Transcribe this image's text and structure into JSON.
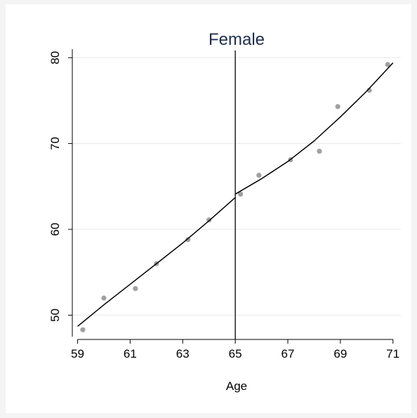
{
  "chart_data": {
    "type": "scatter",
    "title": "Female",
    "xlabel": "Age",
    "ylabel": "",
    "xlim": [
      58.8,
      71.3
    ],
    "ylim": [
      47.5,
      81
    ],
    "x_ticks": [
      59,
      61,
      63,
      65,
      67,
      69,
      71
    ],
    "y_ticks": [
      50,
      60,
      70,
      80
    ],
    "grid": "horizontal",
    "legend": "none",
    "cutoff_x": 65,
    "series": [
      {
        "kind": "scatter",
        "color": "#a0a0a0",
        "points": [
          {
            "x": 59.2,
            "y": 48.3
          },
          {
            "x": 60.0,
            "y": 52.0
          },
          {
            "x": 61.2,
            "y": 53.1
          },
          {
            "x": 62.0,
            "y": 56.0
          },
          {
            "x": 63.2,
            "y": 58.8
          },
          {
            "x": 64.0,
            "y": 61.1
          },
          {
            "x": 65.2,
            "y": 64.1
          },
          {
            "x": 65.9,
            "y": 66.3
          },
          {
            "x": 67.1,
            "y": 68.1
          },
          {
            "x": 68.2,
            "y": 69.1
          },
          {
            "x": 68.9,
            "y": 74.3
          },
          {
            "x": 70.1,
            "y": 76.2
          },
          {
            "x": 70.8,
            "y": 79.2
          }
        ]
      },
      {
        "kind": "fit-left",
        "color": "#000000",
        "points": [
          {
            "x": 59.0,
            "y": 48.7
          },
          {
            "x": 60.0,
            "y": 51.2
          },
          {
            "x": 61.0,
            "y": 53.6
          },
          {
            "x": 62.0,
            "y": 56.0
          },
          {
            "x": 63.0,
            "y": 58.4
          },
          {
            "x": 64.0,
            "y": 61.0
          },
          {
            "x": 65.0,
            "y": 63.7
          }
        ]
      },
      {
        "kind": "fit-right",
        "color": "#000000",
        "points": [
          {
            "x": 65.0,
            "y": 64.1
          },
          {
            "x": 66.0,
            "y": 65.9
          },
          {
            "x": 67.0,
            "y": 67.9
          },
          {
            "x": 68.0,
            "y": 70.3
          },
          {
            "x": 69.0,
            "y": 73.1
          },
          {
            "x": 70.0,
            "y": 76.1
          },
          {
            "x": 71.0,
            "y": 79.4
          }
        ]
      }
    ]
  }
}
